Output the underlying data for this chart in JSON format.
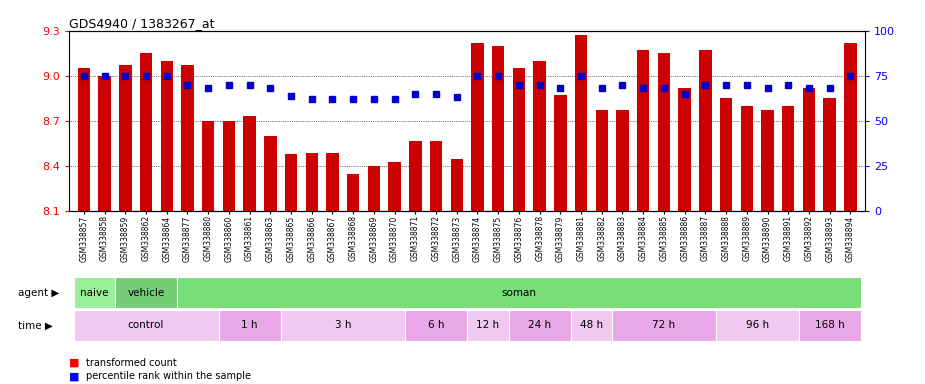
{
  "title": "GDS4940 / 1383267_at",
  "samples": [
    "GSM338857",
    "GSM338858",
    "GSM338859",
    "GSM338862",
    "GSM338864",
    "GSM338877",
    "GSM338880",
    "GSM338860",
    "GSM338861",
    "GSM338863",
    "GSM338865",
    "GSM338866",
    "GSM338867",
    "GSM338868",
    "GSM338869",
    "GSM338870",
    "GSM338871",
    "GSM338872",
    "GSM338873",
    "GSM338874",
    "GSM338875",
    "GSM338876",
    "GSM338878",
    "GSM338879",
    "GSM338881",
    "GSM338882",
    "GSM338883",
    "GSM338884",
    "GSM338885",
    "GSM338886",
    "GSM338887",
    "GSM338888",
    "GSM338889",
    "GSM338890",
    "GSM338891",
    "GSM338892",
    "GSM338893",
    "GSM338894"
  ],
  "bar_values": [
    9.05,
    9.0,
    9.07,
    9.15,
    9.1,
    9.07,
    8.7,
    8.7,
    8.73,
    8.6,
    8.48,
    8.49,
    8.49,
    8.35,
    8.4,
    8.43,
    8.57,
    8.57,
    8.45,
    9.22,
    9.2,
    9.05,
    9.1,
    8.87,
    9.27,
    8.77,
    8.77,
    9.17,
    9.15,
    8.92,
    9.17,
    8.85,
    8.8,
    8.77,
    8.8,
    8.92,
    8.85,
    9.22
  ],
  "percentile_values": [
    75,
    75,
    75,
    75,
    75,
    70,
    68,
    70,
    70,
    68,
    64,
    62,
    62,
    62,
    62,
    62,
    65,
    65,
    63,
    75,
    75,
    70,
    70,
    68,
    75,
    68,
    70,
    68,
    68,
    65,
    70,
    70,
    70,
    68,
    70,
    68,
    68,
    75
  ],
  "ymin": 8.1,
  "ymax": 9.3,
  "y2min": 0,
  "y2max": 100,
  "yticks": [
    8.1,
    8.4,
    8.7,
    9.0,
    9.3
  ],
  "y2ticks": [
    0,
    25,
    50,
    75,
    100
  ],
  "bar_color": "#cc0000",
  "dot_color": "#0000cc",
  "agent_groups": [
    {
      "label": "naive",
      "start": 0,
      "end": 2,
      "color": "#99ee99"
    },
    {
      "label": "vehicle",
      "start": 2,
      "end": 5,
      "color": "#77cc77"
    },
    {
      "label": "soman",
      "start": 5,
      "end": 38,
      "color": "#77dd77"
    }
  ],
  "time_groups": [
    {
      "label": "control",
      "start": 0,
      "end": 7,
      "color": "#f0c8f0"
    },
    {
      "label": "1 h",
      "start": 7,
      "end": 10,
      "color": "#e8a8e8"
    },
    {
      "label": "3 h",
      "start": 10,
      "end": 16,
      "color": "#f0c8f0"
    },
    {
      "label": "6 h",
      "start": 16,
      "end": 19,
      "color": "#e8a8e8"
    },
    {
      "label": "12 h",
      "start": 19,
      "end": 21,
      "color": "#f0c8f0"
    },
    {
      "label": "24 h",
      "start": 21,
      "end": 24,
      "color": "#e8a8e8"
    },
    {
      "label": "48 h",
      "start": 24,
      "end": 26,
      "color": "#f0c8f0"
    },
    {
      "label": "72 h",
      "start": 26,
      "end": 31,
      "color": "#e8a8e8"
    },
    {
      "label": "96 h",
      "start": 31,
      "end": 35,
      "color": "#f0c8f0"
    },
    {
      "label": "168 h",
      "start": 35,
      "end": 38,
      "color": "#e8a8e8"
    }
  ],
  "legend_items": [
    {
      "label": "transformed count",
      "color": "#cc0000",
      "marker": "s"
    },
    {
      "label": "percentile rank within the sample",
      "color": "#0000cc",
      "marker": "s"
    }
  ]
}
